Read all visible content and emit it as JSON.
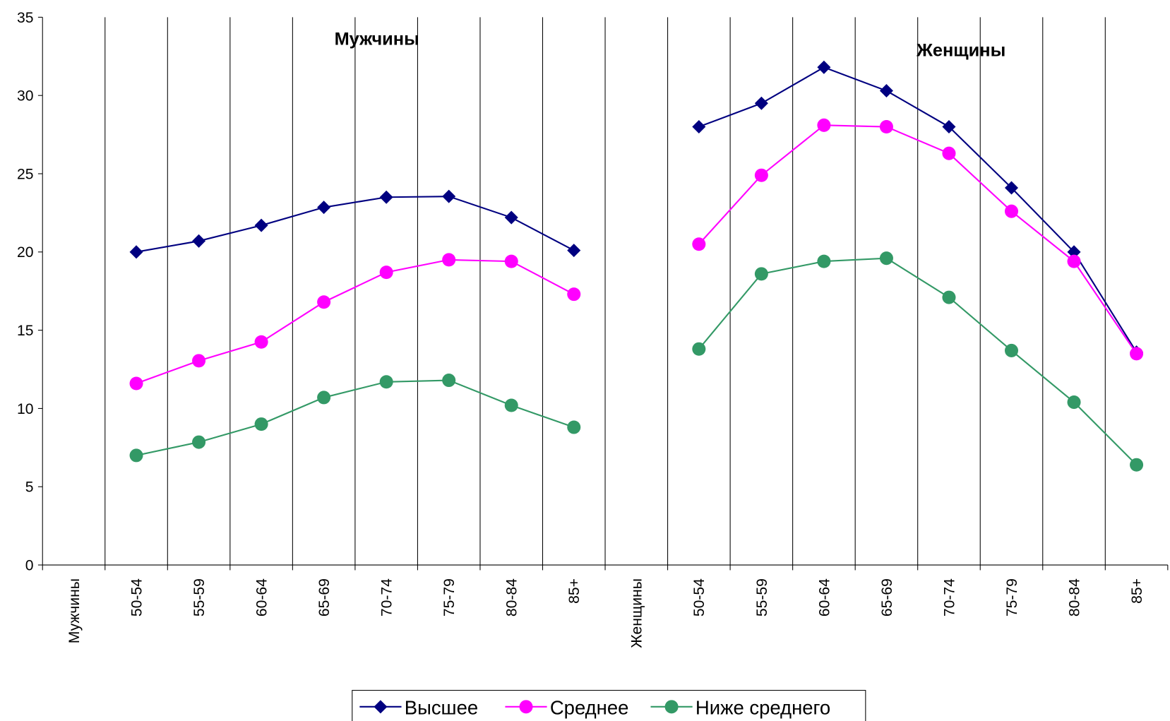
{
  "chart_data": {
    "type": "line",
    "annotations": [
      "Мужчины",
      "Женщины"
    ],
    "categories": [
      "Мужчины",
      "50-54",
      "55-59",
      "60-64",
      "65-69",
      "70-74",
      "75-79",
      "80-84",
      "85+",
      "Женщины",
      "50-54",
      "55-59",
      "60-64",
      "65-69",
      "70-74",
      "75-79",
      "80-84",
      "85+"
    ],
    "series": [
      {
        "name": "Высшее",
        "color": "#000080",
        "marker": "diamond",
        "values": [
          null,
          20.0,
          20.7,
          21.7,
          22.85,
          23.5,
          23.55,
          22.2,
          20.1,
          null,
          28.0,
          29.5,
          31.8,
          30.3,
          28.0,
          24.1,
          20.0,
          13.6
        ]
      },
      {
        "name": "Среднее",
        "color": "#ff00ff",
        "marker": "circle",
        "values": [
          null,
          11.6,
          13.05,
          14.25,
          16.8,
          18.7,
          19.5,
          19.4,
          17.3,
          null,
          20.5,
          24.9,
          28.1,
          28.0,
          26.3,
          22.6,
          19.4,
          13.5
        ]
      },
      {
        "name": "Ниже среднего",
        "color": "#339966",
        "marker": "circle",
        "values": [
          null,
          7.0,
          7.85,
          9.0,
          10.7,
          11.7,
          11.8,
          10.2,
          8.8,
          null,
          13.8,
          18.6,
          19.4,
          19.6,
          17.1,
          13.7,
          10.4,
          6.4
        ]
      }
    ],
    "ylim": [
      0,
      35
    ],
    "yticks": [
      0,
      5,
      10,
      15,
      20,
      25,
      30,
      35
    ],
    "grid": "x",
    "legend": "bottom"
  }
}
